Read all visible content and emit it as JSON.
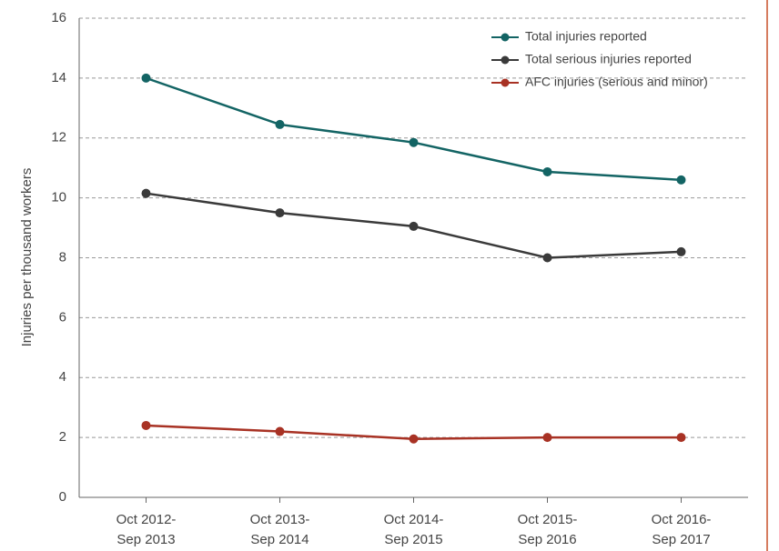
{
  "chart_data": {
    "type": "line",
    "y_label": "Injuries per thousand workers",
    "categories": [
      "Oct 2012-Sep 2013",
      "Oct 2013-Sep 2014",
      "Oct 2014-Sep 2015",
      "Oct 2015-Sep 2016",
      "Oct 2016-Sep 2017"
    ],
    "series": [
      {
        "name": "Total injuries reported",
        "color": "#136464",
        "values": [
          14.0,
          12.45,
          11.85,
          10.87,
          10.6
        ]
      },
      {
        "name": "Total serious injuries reported",
        "color": "#3a3a3a",
        "values": [
          10.15,
          9.5,
          9.05,
          8.0,
          8.2
        ]
      },
      {
        "name": "AFC injuries (serious and minor)",
        "color": "#a83224",
        "values": [
          2.4,
          2.2,
          1.95,
          2.0,
          2.0
        ]
      }
    ],
    "ylim": [
      0,
      16
    ],
    "yticks": [
      0,
      2,
      4,
      6,
      8,
      10,
      12,
      14,
      16
    ],
    "grid": true,
    "legend": "top-right"
  }
}
